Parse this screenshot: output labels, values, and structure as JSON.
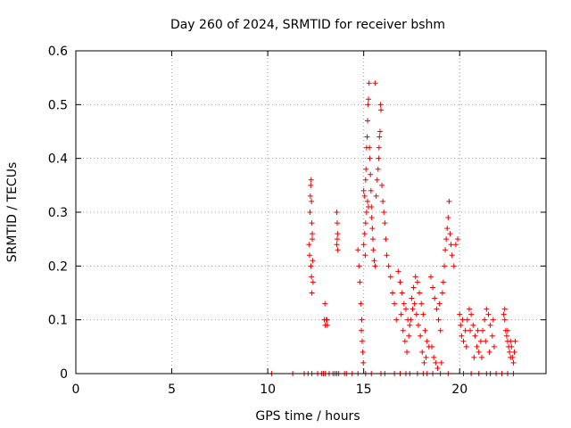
{
  "chart_data": {
    "type": "scatter",
    "title": "Day 260 of 2024, SRMTID for receiver bshm",
    "xlabel": "GPS time / hours",
    "ylabel": "SRMTID / TECUs",
    "xlim": [
      0,
      24.5
    ],
    "ylim": [
      0,
      0.6
    ],
    "xticks": [
      0,
      5,
      10,
      15,
      20
    ],
    "xtick_labels": [
      "0",
      "5",
      "10",
      "15",
      "20"
    ],
    "yticks": [
      0,
      0.1,
      0.2,
      0.3,
      0.4,
      0.5,
      0.6
    ],
    "ytick_labels": [
      "0",
      "0.1",
      "0.2",
      "0.3",
      "0.4",
      "0.5",
      "0.6"
    ],
    "grid": true,
    "marker": "+",
    "series": [
      {
        "name": "SRMTID",
        "color": "#ee0000",
        "points": [
          [
            10.2,
            0.0
          ],
          [
            11.3,
            0.0
          ],
          [
            11.9,
            0.0
          ],
          [
            12.1,
            0.0
          ],
          [
            12.3,
            0.0
          ],
          [
            12.6,
            0.0
          ],
          [
            12.8,
            0.0
          ],
          [
            12.9,
            0.0
          ],
          [
            13.0,
            0.0
          ],
          [
            13.2,
            0.0
          ],
          [
            13.4,
            0.0
          ],
          [
            13.5,
            0.0
          ],
          [
            13.6,
            0.0
          ],
          [
            13.7,
            0.0
          ],
          [
            14.0,
            0.0
          ],
          [
            14.1,
            0.0
          ],
          [
            14.4,
            0.0
          ],
          [
            14.7,
            0.0
          ],
          [
            15.1,
            0.0
          ],
          [
            15.4,
            0.0
          ],
          [
            15.9,
            0.0
          ],
          [
            16.1,
            0.0
          ],
          [
            16.6,
            0.0
          ],
          [
            16.9,
            0.0
          ],
          [
            17.2,
            0.0
          ],
          [
            17.4,
            0.0
          ],
          [
            17.8,
            0.0
          ],
          [
            18.1,
            0.0
          ],
          [
            18.3,
            0.0
          ],
          [
            18.6,
            0.0
          ],
          [
            19.0,
            0.0
          ],
          [
            19.4,
            0.0
          ],
          [
            20.2,
            0.0
          ],
          [
            20.6,
            0.0
          ],
          [
            21.0,
            0.0
          ],
          [
            21.4,
            0.0
          ],
          [
            21.6,
            0.0
          ],
          [
            21.9,
            0.0
          ],
          [
            22.2,
            0.0
          ],
          [
            22.5,
            0.0
          ],
          [
            22.8,
            0.0
          ],
          [
            12.15,
            0.24
          ],
          [
            12.18,
            0.22
          ],
          [
            12.2,
            0.3
          ],
          [
            12.22,
            0.33
          ],
          [
            12.24,
            0.35
          ],
          [
            12.26,
            0.36
          ],
          [
            12.28,
            0.32
          ],
          [
            12.3,
            0.28
          ],
          [
            12.32,
            0.26
          ],
          [
            12.34,
            0.21
          ],
          [
            12.36,
            0.17
          ],
          [
            12.3,
            0.15
          ],
          [
            12.28,
            0.18
          ],
          [
            12.25,
            0.2
          ],
          [
            12.32,
            0.25
          ],
          [
            12.95,
            0.1
          ],
          [
            13.0,
            0.09
          ],
          [
            13.05,
            0.1
          ],
          [
            13.1,
            0.09
          ],
          [
            12.98,
            0.13
          ],
          [
            13.08,
            0.1
          ],
          [
            13.6,
            0.3
          ],
          [
            13.62,
            0.28
          ],
          [
            13.64,
            0.26
          ],
          [
            13.6,
            0.24
          ],
          [
            13.65,
            0.23
          ],
          [
            13.62,
            0.25
          ],
          [
            14.7,
            0.23
          ],
          [
            14.75,
            0.2
          ],
          [
            14.8,
            0.17
          ],
          [
            14.85,
            0.13
          ],
          [
            14.9,
            0.1
          ],
          [
            14.88,
            0.08
          ],
          [
            14.92,
            0.06
          ],
          [
            14.95,
            0.04
          ],
          [
            14.98,
            0.02
          ],
          [
            15.0,
            0.34
          ],
          [
            15.05,
            0.33
          ],
          [
            15.1,
            0.36
          ],
          [
            15.12,
            0.38
          ],
          [
            15.15,
            0.42
          ],
          [
            15.18,
            0.44
          ],
          [
            15.2,
            0.47
          ],
          [
            15.22,
            0.5
          ],
          [
            15.25,
            0.51
          ],
          [
            15.28,
            0.54
          ],
          [
            15.3,
            0.42
          ],
          [
            15.32,
            0.4
          ],
          [
            15.35,
            0.37
          ],
          [
            15.38,
            0.34
          ],
          [
            15.4,
            0.31
          ],
          [
            15.42,
            0.29
          ],
          [
            15.45,
            0.27
          ],
          [
            15.48,
            0.25
          ],
          [
            15.5,
            0.23
          ],
          [
            15.55,
            0.21
          ],
          [
            15.6,
            0.2
          ],
          [
            15.65,
            0.33
          ],
          [
            15.7,
            0.36
          ],
          [
            15.75,
            0.38
          ],
          [
            15.78,
            0.4
          ],
          [
            15.8,
            0.42
          ],
          [
            15.82,
            0.44
          ],
          [
            15.85,
            0.45
          ],
          [
            15.88,
            0.5
          ],
          [
            15.9,
            0.49
          ],
          [
            15.6,
            0.54
          ],
          [
            15.95,
            0.35
          ],
          [
            16.0,
            0.32
          ],
          [
            16.05,
            0.3
          ],
          [
            16.1,
            0.28
          ],
          [
            16.15,
            0.25
          ],
          [
            16.2,
            0.22
          ],
          [
            16.3,
            0.2
          ],
          [
            16.4,
            0.18
          ],
          [
            16.5,
            0.15
          ],
          [
            16.6,
            0.13
          ],
          [
            16.7,
            0.1
          ],
          [
            15.05,
            0.26
          ],
          [
            15.1,
            0.28
          ],
          [
            15.15,
            0.3
          ],
          [
            15.2,
            0.32
          ],
          [
            15.25,
            0.31
          ],
          [
            15.0,
            0.24
          ],
          [
            15.08,
            0.22
          ],
          [
            16.8,
            0.19
          ],
          [
            16.9,
            0.17
          ],
          [
            17.0,
            0.15
          ],
          [
            17.1,
            0.13
          ],
          [
            17.2,
            0.12
          ],
          [
            17.3,
            0.1
          ],
          [
            17.4,
            0.09
          ],
          [
            17.5,
            0.14
          ],
          [
            17.6,
            0.16
          ],
          [
            17.7,
            0.18
          ],
          [
            17.8,
            0.17
          ],
          [
            17.9,
            0.15
          ],
          [
            18.0,
            0.13
          ],
          [
            18.1,
            0.11
          ],
          [
            18.2,
            0.08
          ],
          [
            18.3,
            0.06
          ],
          [
            18.4,
            0.05
          ],
          [
            16.95,
            0.11
          ],
          [
            17.05,
            0.08
          ],
          [
            17.15,
            0.06
          ],
          [
            17.25,
            0.04
          ],
          [
            17.35,
            0.07
          ],
          [
            17.45,
            0.1
          ],
          [
            17.55,
            0.12
          ],
          [
            17.65,
            0.13
          ],
          [
            17.75,
            0.11
          ],
          [
            17.85,
            0.09
          ],
          [
            17.95,
            0.07
          ],
          [
            18.05,
            0.04
          ],
          [
            18.15,
            0.02
          ],
          [
            18.25,
            0.03
          ],
          [
            18.5,
            0.18
          ],
          [
            18.6,
            0.16
          ],
          [
            18.7,
            0.14
          ],
          [
            18.8,
            0.12
          ],
          [
            18.9,
            0.1
          ],
          [
            19.0,
            0.08
          ],
          [
            19.1,
            0.15
          ],
          [
            19.2,
            0.2
          ],
          [
            19.25,
            0.23
          ],
          [
            19.3,
            0.25
          ],
          [
            19.35,
            0.27
          ],
          [
            19.4,
            0.29
          ],
          [
            19.45,
            0.32
          ],
          [
            19.5,
            0.26
          ],
          [
            19.55,
            0.24
          ],
          [
            19.6,
            0.22
          ],
          [
            19.7,
            0.2
          ],
          [
            19.8,
            0.24
          ],
          [
            19.9,
            0.25
          ],
          [
            18.55,
            0.05
          ],
          [
            18.65,
            0.03
          ],
          [
            18.75,
            0.02
          ],
          [
            18.85,
            0.01
          ],
          [
            19.05,
            0.02
          ],
          [
            18.95,
            0.13
          ],
          [
            19.15,
            0.17
          ],
          [
            20.0,
            0.11
          ],
          [
            20.05,
            0.09
          ],
          [
            20.1,
            0.07
          ],
          [
            20.2,
            0.06
          ],
          [
            20.3,
            0.08
          ],
          [
            20.4,
            0.1
          ],
          [
            20.5,
            0.12
          ],
          [
            20.6,
            0.11
          ],
          [
            20.7,
            0.09
          ],
          [
            20.8,
            0.07
          ],
          [
            20.9,
            0.05
          ],
          [
            21.0,
            0.04
          ],
          [
            21.1,
            0.06
          ],
          [
            21.2,
            0.08
          ],
          [
            21.3,
            0.1
          ],
          [
            21.4,
            0.12
          ],
          [
            21.5,
            0.11
          ],
          [
            21.6,
            0.09
          ],
          [
            21.7,
            0.07
          ],
          [
            21.8,
            0.05
          ],
          [
            20.15,
            0.1
          ],
          [
            20.35,
            0.05
          ],
          [
            20.55,
            0.08
          ],
          [
            20.75,
            0.03
          ],
          [
            20.95,
            0.08
          ],
          [
            21.15,
            0.03
          ],
          [
            21.35,
            0.06
          ],
          [
            21.55,
            0.04
          ],
          [
            21.75,
            0.1
          ],
          [
            22.3,
            0.11
          ],
          [
            22.35,
            0.1
          ],
          [
            22.4,
            0.08
          ],
          [
            22.45,
            0.07
          ],
          [
            22.5,
            0.06
          ],
          [
            22.55,
            0.05
          ],
          [
            22.6,
            0.04
          ],
          [
            22.65,
            0.06
          ],
          [
            22.7,
            0.05
          ],
          [
            22.75,
            0.03
          ],
          [
            22.8,
            0.02
          ],
          [
            22.85,
            0.04
          ],
          [
            22.9,
            0.06
          ],
          [
            22.35,
            0.12
          ],
          [
            22.5,
            0.08
          ],
          [
            22.65,
            0.03
          ]
        ]
      }
    ]
  }
}
